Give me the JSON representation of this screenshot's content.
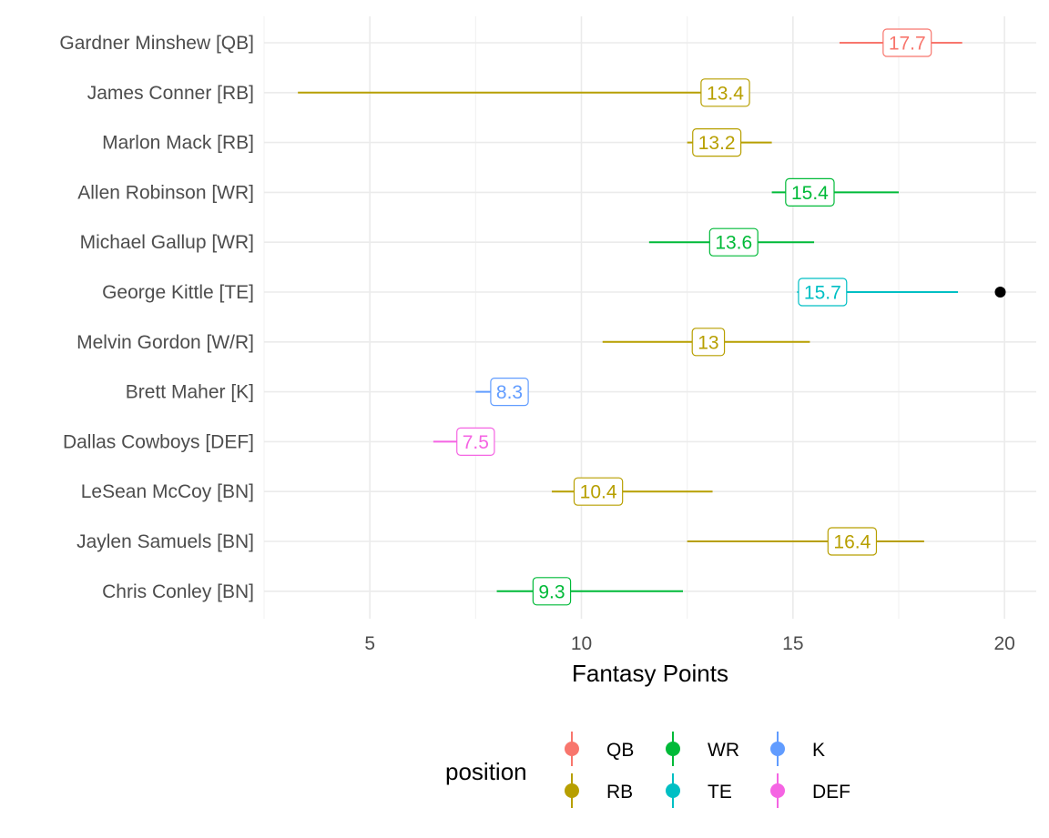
{
  "chart_data": {
    "type": "interval",
    "xlabel": "Fantasy Points",
    "x_ticks": [
      5,
      10,
      15,
      20
    ],
    "xlim": [
      2.5,
      20.75
    ],
    "grid": true,
    "legend": {
      "title": "position",
      "placement": "bottom",
      "entries": [
        {
          "label": "QB",
          "color": "#F8766D"
        },
        {
          "label": "WR",
          "color": "#00BA38"
        },
        {
          "label": "K",
          "color": "#619CFF"
        },
        {
          "label": "RB",
          "color": "#B79F00"
        },
        {
          "label": "TE",
          "color": "#00BFC4"
        },
        {
          "label": "DEF",
          "color": "#F564E3"
        }
      ]
    },
    "players": [
      {
        "name": "Gardner Minshew [QB]",
        "position": "QB",
        "low": 16.1,
        "high": 19.0,
        "projection": 17.7,
        "label": "17.7"
      },
      {
        "name": "James Conner [RB]",
        "position": "RB",
        "low": 3.3,
        "high": 13.4,
        "projection": 13.4,
        "label": "13.4"
      },
      {
        "name": "Marlon Mack [RB]",
        "position": "RB",
        "low": 12.5,
        "high": 14.5,
        "projection": 13.2,
        "label": "13.2"
      },
      {
        "name": "Allen Robinson [WR]",
        "position": "WR",
        "low": 14.5,
        "high": 17.5,
        "projection": 15.4,
        "label": "15.4"
      },
      {
        "name": "Michael Gallup [WR]",
        "position": "WR",
        "low": 11.6,
        "high": 15.5,
        "projection": 13.6,
        "label": "13.6"
      },
      {
        "name": "George Kittle [TE]",
        "position": "TE",
        "low": 15.1,
        "high": 18.9,
        "projection": 15.7,
        "label": "15.7",
        "actual": 19.9
      },
      {
        "name": "Melvin Gordon [W/R]",
        "position": "RB",
        "low": 10.5,
        "high": 15.4,
        "projection": 13.0,
        "label": "13"
      },
      {
        "name": "Brett Maher [K]",
        "position": "K",
        "low": 7.5,
        "high": 8.5,
        "projection": 8.3,
        "label": "8.3"
      },
      {
        "name": "Dallas Cowboys [DEF]",
        "position": "DEF",
        "low": 6.5,
        "high": 7.8,
        "projection": 7.5,
        "label": "7.5"
      },
      {
        "name": "LeSean McCoy [BN]",
        "position": "RB",
        "low": 9.3,
        "high": 13.1,
        "projection": 10.4,
        "label": "10.4"
      },
      {
        "name": "Jaylen Samuels [BN]",
        "position": "RB",
        "low": 12.5,
        "high": 18.1,
        "projection": 16.4,
        "label": "16.4"
      },
      {
        "name": "Chris Conley [BN]",
        "position": "WR",
        "low": 8.0,
        "high": 12.4,
        "projection": 9.3,
        "label": "9.3"
      }
    ]
  }
}
